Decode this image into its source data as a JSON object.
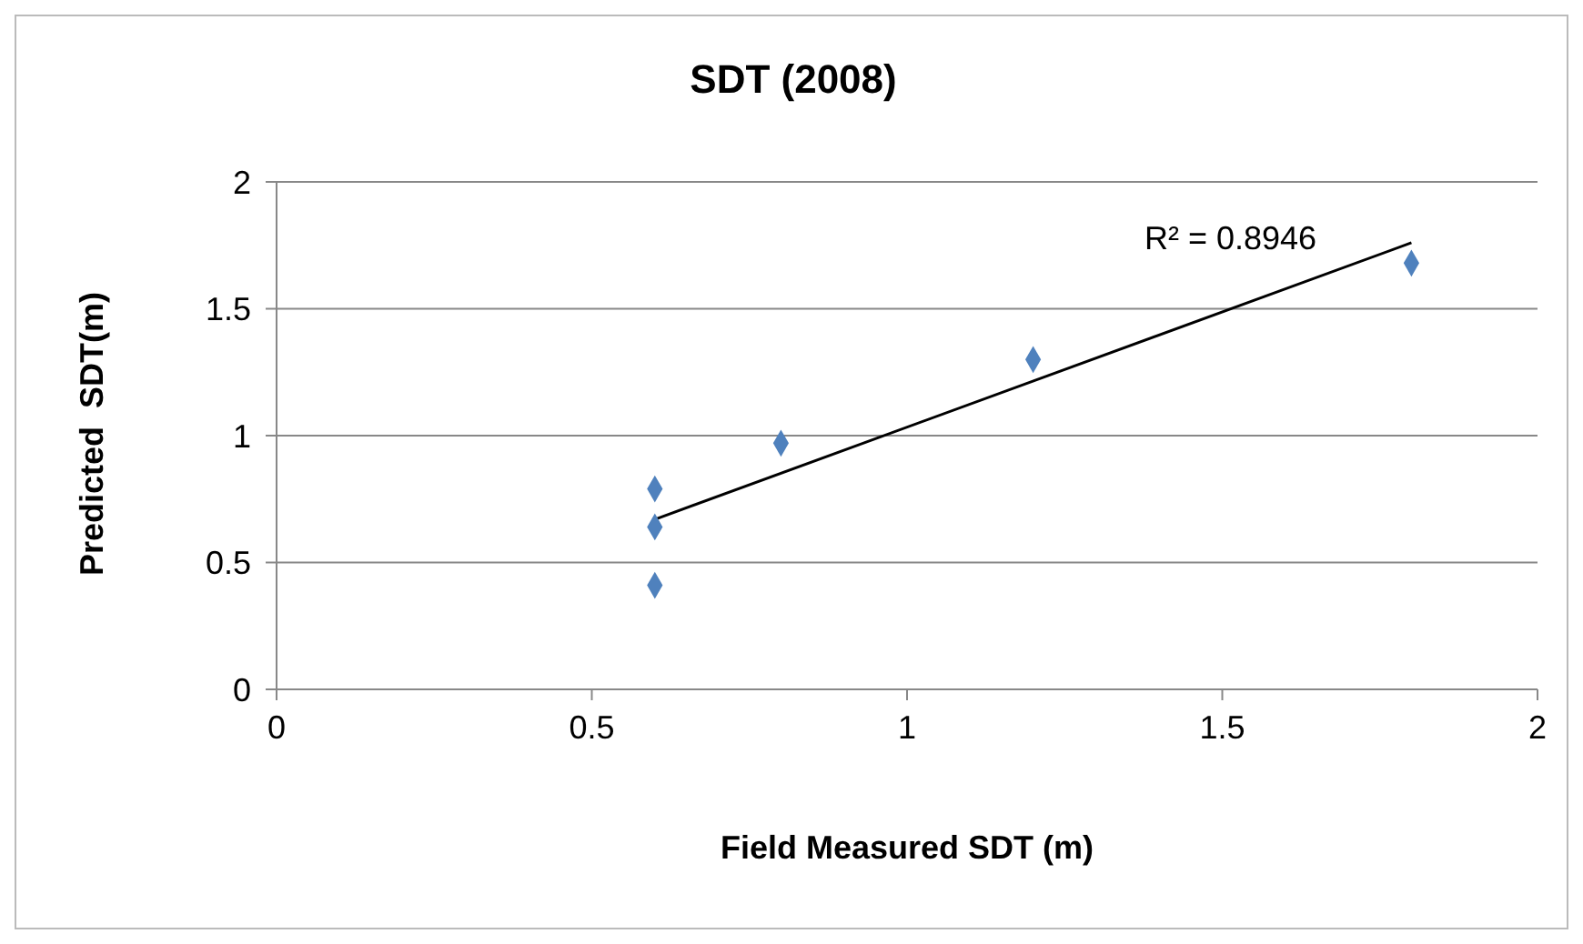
{
  "chart_data": {
    "type": "scatter",
    "title": "SDT (2008)",
    "xlabel": "Field Measured SDT (m)",
    "ylabel": "Predicted  SDT(m)",
    "series": [
      {
        "color": "#4f81bd",
        "marker": "diamond",
        "x": [
          0.6,
          0.6,
          0.6,
          0.8,
          1.2,
          1.8
        ],
        "values": [
          0.79,
          0.64,
          0.41,
          0.97,
          1.3,
          1.68
        ]
      },
      {
        "type": "line",
        "color": "#000000",
        "marker": "none",
        "x": [
          0.6,
          1.8
        ],
        "values": [
          0.67,
          1.76
        ]
      }
    ],
    "annotations": [
      "R² = 0.8946"
    ],
    "xlim": [
      0,
      2
    ],
    "xticks": [
      0,
      0.5,
      1,
      1.5,
      2
    ],
    "ylim": [
      0,
      2
    ],
    "yticks": [
      0,
      0.5,
      1,
      1.5,
      2
    ],
    "grid": "y"
  }
}
